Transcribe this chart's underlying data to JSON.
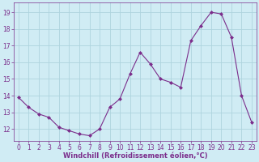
{
  "x": [
    0,
    1,
    2,
    3,
    4,
    5,
    6,
    7,
    8,
    9,
    10,
    11,
    12,
    13,
    14,
    15,
    16,
    17,
    18,
    19,
    20,
    21,
    22,
    23
  ],
  "y": [
    13.9,
    13.3,
    12.9,
    12.7,
    12.1,
    11.9,
    11.7,
    11.6,
    12.0,
    13.3,
    13.8,
    15.3,
    16.6,
    15.9,
    15.0,
    14.8,
    14.5,
    17.3,
    18.2,
    19.0,
    18.9,
    17.5,
    14.0,
    12.4
  ],
  "line_color": "#7b2d8b",
  "marker_color": "#7b2d8b",
  "bg_color": "#d0ecf4",
  "grid_color": "#aed4de",
  "xlabel": "Windchill (Refroidissement éolien,°C)",
  "yticks": [
    12,
    13,
    14,
    15,
    16,
    17,
    18,
    19
  ],
  "xlim": [
    -0.5,
    23.5
  ],
  "ylim": [
    11.3,
    19.6
  ],
  "axis_fontsize": 5.5,
  "tick_fontsize": 5.5,
  "xlabel_fontsize": 6.0
}
